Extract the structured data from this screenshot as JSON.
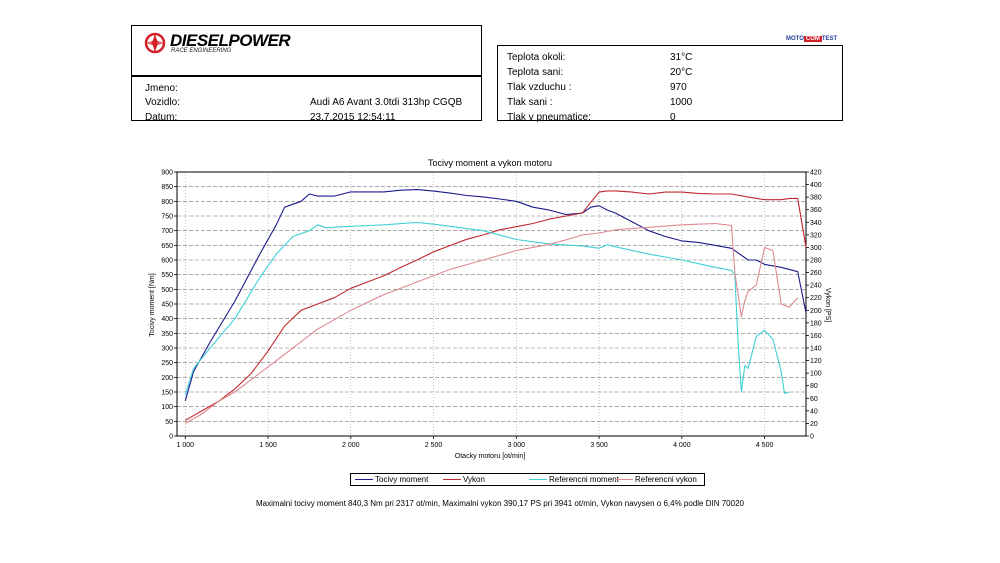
{
  "header": {
    "brand": "DIESELPOWER",
    "brand_sub": "RACE ENGINEERING",
    "moto_left": "MOTO",
    "moto_mid": "COM",
    "moto_right": "TEST"
  },
  "vehicle": {
    "name_label": "Jmeno:",
    "name_value": "",
    "vehicle_label": "Vozidlo:",
    "vehicle_value": "Audi A6 Avant 3.0tdi 313hp CGQB",
    "date_label": "Datum:",
    "date_value": "23.7.2015 12:54:11"
  },
  "conditions": [
    {
      "label": "Teplota okoli:",
      "value": "31°C"
    },
    {
      "label": "Teplota sani:",
      "value": "20°C"
    },
    {
      "label": "Tlak vzduchu :",
      "value": "970"
    },
    {
      "label": "Tlak sani :",
      "value": "1000"
    },
    {
      "label": "Tlak v pneumatice:",
      "value": "0"
    }
  ],
  "summary": "Maximalni tocivy moment 840,3 Nm pri 2317 ot/min,  Maximalni vykon 390,17 PS pri 3941 ot/min,  Vykon navysen o 6,4% podle DIN 70020",
  "chart_data": {
    "type": "line",
    "title": "Tocivy moment a vykon motoru",
    "xlabel": "Otacky motoru [ot/min]",
    "ylabel": "Tocivy moment [Nm]",
    "y2label": "Vykon [PS]",
    "xlim": [
      950,
      4750
    ],
    "ylim": [
      0,
      900
    ],
    "y2lim": [
      0,
      420
    ],
    "x_ticks": [
      1000,
      1500,
      2000,
      2500,
      3000,
      3500,
      4000,
      4500
    ],
    "x_tick_labels": [
      "1 000",
      "1 500",
      "2 000",
      "2 500",
      "3 000",
      "3 500",
      "4 000",
      "4 500"
    ],
    "y_ticks": [
      0,
      50,
      100,
      150,
      200,
      250,
      300,
      350,
      400,
      450,
      500,
      550,
      600,
      650,
      700,
      750,
      800,
      850,
      900
    ],
    "y2_ticks": [
      0,
      20,
      40,
      60,
      80,
      100,
      120,
      140,
      160,
      180,
      200,
      220,
      240,
      260,
      280,
      300,
      320,
      340,
      360,
      380,
      400,
      420
    ],
    "grid": true,
    "legend_position": "bottom",
    "series": [
      {
        "name": "Tocivy moment",
        "axis": "left",
        "color": "#1a1a8c",
        "x": [
          1000,
          1050,
          1150,
          1300,
          1450,
          1550,
          1600,
          1700,
          1750,
          1800,
          1900,
          2000,
          2100,
          2200,
          2300,
          2400,
          2500,
          2600,
          2700,
          2800,
          2900,
          3000,
          3100,
          3200,
          3300,
          3400,
          3450,
          3500,
          3550,
          3600,
          3700,
          3800,
          3900,
          4000,
          4100,
          4200,
          4300,
          4400,
          4450,
          4500,
          4600,
          4700,
          4750
        ],
        "y": [
          120,
          220,
          320,
          460,
          620,
          720,
          780,
          800,
          825,
          818,
          818,
          832,
          832,
          832,
          838,
          840,
          835,
          828,
          820,
          815,
          808,
          800,
          780,
          770,
          755,
          760,
          780,
          785,
          770,
          760,
          730,
          700,
          680,
          665,
          660,
          650,
          640,
          600,
          600,
          585,
          575,
          560,
          420
        ]
      },
      {
        "name": "Vykon",
        "axis": "right",
        "color": "#c0282d",
        "x": [
          1000,
          1100,
          1200,
          1300,
          1400,
          1500,
          1600,
          1700,
          1800,
          1900,
          2000,
          2100,
          2200,
          2300,
          2400,
          2500,
          2600,
          2700,
          2800,
          2900,
          3000,
          3100,
          3200,
          3300,
          3400,
          3450,
          3500,
          3550,
          3600,
          3700,
          3800,
          3900,
          4000,
          4100,
          4200,
          4300,
          4400,
          4500,
          4600,
          4650,
          4700,
          4750
        ],
        "y": [
          25,
          40,
          55,
          75,
          100,
          135,
          175,
          200,
          210,
          220,
          235,
          245,
          255,
          268,
          280,
          293,
          303,
          313,
          320,
          328,
          333,
          338,
          345,
          350,
          355,
          372,
          388,
          390,
          390,
          388,
          385,
          388,
          388,
          386,
          385,
          385,
          380,
          376,
          376,
          378,
          378,
          300
        ]
      },
      {
        "name": "Referencni moment",
        "axis": "left",
        "color": "#3fd0d6",
        "x": [
          1000,
          1050,
          1150,
          1300,
          1450,
          1550,
          1650,
          1750,
          1800,
          1850,
          2000,
          2200,
          2400,
          2500,
          2600,
          2800,
          3000,
          3200,
          3400,
          3500,
          3550,
          3600,
          3800,
          4000,
          4200,
          4300,
          4320,
          4340,
          4360,
          4380,
          4400,
          4450,
          4500,
          4550,
          4600,
          4620,
          4650
        ],
        "y": [
          140,
          230,
          300,
          400,
          540,
          620,
          680,
          700,
          720,
          710,
          715,
          720,
          728,
          722,
          715,
          700,
          670,
          655,
          648,
          640,
          652,
          645,
          620,
          600,
          575,
          565,
          550,
          320,
          150,
          240,
          230,
          340,
          360,
          330,
          220,
          145,
          150
        ]
      },
      {
        "name": "Referencni vykon",
        "axis": "right",
        "color": "#de8a90",
        "x": [
          1000,
          1100,
          1200,
          1300,
          1400,
          1500,
          1600,
          1700,
          1800,
          1900,
          2000,
          2200,
          2400,
          2600,
          2800,
          3000,
          3200,
          3300,
          3400,
          3500,
          3600,
          3700,
          3800,
          3900,
          4000,
          4100,
          4200,
          4300,
          4320,
          4360,
          4380,
          4400,
          4450,
          4500,
          4550,
          4600,
          4650,
          4700
        ],
        "y": [
          20,
          35,
          55,
          70,
          90,
          110,
          130,
          150,
          170,
          185,
          200,
          225,
          245,
          265,
          280,
          295,
          305,
          312,
          320,
          323,
          328,
          330,
          332,
          334,
          336,
          337,
          338,
          335,
          260,
          190,
          215,
          230,
          240,
          300,
          295,
          210,
          205,
          220
        ]
      }
    ]
  }
}
